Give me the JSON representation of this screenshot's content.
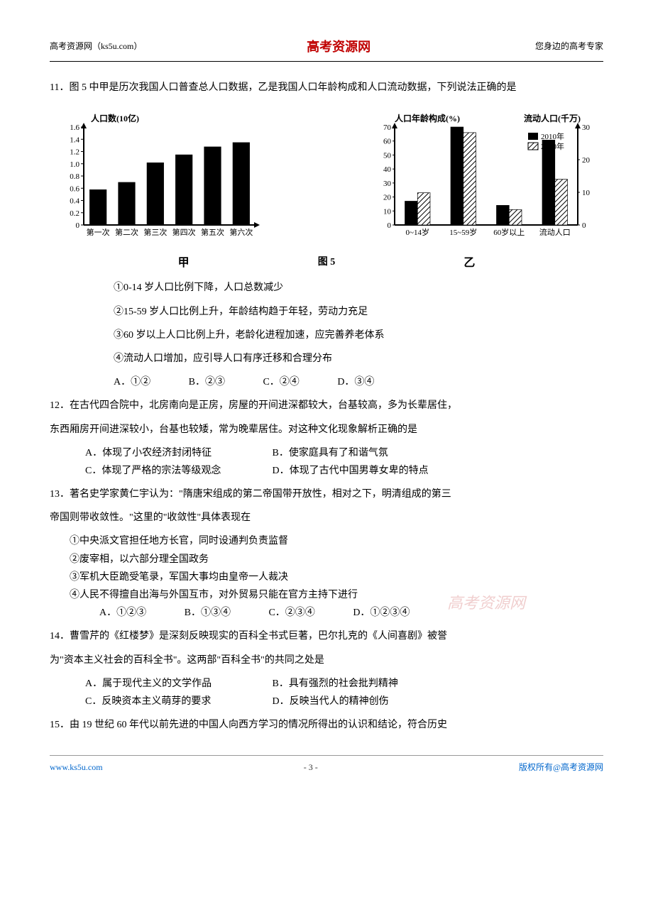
{
  "header": {
    "left": "高考资源网（ks5u.com）",
    "center": "高考资源网",
    "right": "您身边的高考专家"
  },
  "watermark": "高考资源网",
  "q11": {
    "stem": "11．图 5 中甲是历次我国人口普查总人口数据，乙是我国人口年龄构成和人口流动数据，下列说法正确的是",
    "opt1": "①0-14 岁人口比例下降，人口总数减少",
    "opt2": "②15-59 岁人口比例上升，年龄结构趋于年轻，劳动力充足",
    "opt3": "③60 岁以上人口比例上升，老龄化进程加速，应完善养老体系",
    "opt4": "④流动人口增加，应引导人口有序迁移和合理分布",
    "cA": "A．①②",
    "cB": "B．②③",
    "cC": "C．②④",
    "cD": "D．③④"
  },
  "chart1": {
    "type": "bar",
    "y_title": "人口数(10亿)",
    "categories": [
      "第一次",
      "第二次",
      "第三次",
      "第四次",
      "第五次",
      "第六次"
    ],
    "values": [
      0.58,
      0.7,
      1.02,
      1.15,
      1.28,
      1.35
    ],
    "ylim": [
      0,
      1.6
    ],
    "ytick_step": 0.2,
    "bar_color": "#000000",
    "axis_color": "#000000",
    "background_color": "#ffffff",
    "label_fontsize": 11,
    "caption": "甲",
    "fig_label": "图 5"
  },
  "chart2": {
    "type": "grouped-bar-dual-axis",
    "left_y_title": "人口年龄构成(%)",
    "right_y_title": "流动人口(千万)",
    "categories": [
      "0~14岁",
      "15~59岁",
      "60岁以上",
      "流动人口"
    ],
    "series": [
      {
        "name": "2010年",
        "values": [
          17,
          70,
          14,
          26
        ],
        "fill": "solid",
        "color": "#000000"
      },
      {
        "name": "2000年",
        "values": [
          23,
          66,
          11,
          14
        ],
        "fill": "hatch",
        "color": "#000000"
      }
    ],
    "left_ylim": [
      0,
      70
    ],
    "left_ytick_step": 10,
    "right_ylim": [
      0,
      30
    ],
    "right_ytick_step": 10,
    "axis_color": "#000000",
    "background_color": "#ffffff",
    "label_fontsize": 11,
    "legend": [
      "2010年",
      "2000年"
    ],
    "caption": "乙"
  },
  "q12": {
    "stem1": "12．在古代四合院中，北房南向是正房，房屋的开间进深都较大，台基较高，多为长辈居住，",
    "stem2": "东西厢房开间进深较小，台基也较矮，常为晚辈居住。对这种文化现象解析正确的是",
    "cA": "A．体现了小农经济封闭特征",
    "cB": "B．使家庭具有了和谐气氛",
    "cC": "C．体现了严格的宗法等级观念",
    "cD": "D．体现了古代中国男尊女卑的特点"
  },
  "q13": {
    "stem1": "13．著名史学家黄仁宇认为：\"隋唐宋组成的第二帝国带开放性，相对之下，明清组成的第三",
    "stem2": "帝国则带收敛性。\"这里的\"收敛性\"具体表现在",
    "opt1": "①中央派文官担任地方长官，同时设通判负责监督",
    "opt2": "②废宰相，以六部分理全国政务",
    "opt3": "③军机大臣跪受笔录，军国大事均由皇帝一人裁决",
    "opt4": "④人民不得擅自出海与外国互市，对外贸易只能在官方主持下进行",
    "cA": "A．①②③",
    "cB": "B．①③④",
    "cC": "C．②③④",
    "cD": "D．①②③④"
  },
  "q14": {
    "stem1": "14．曹雪芹的《红楼梦》是深刻反映现实的百科全书式巨著，巴尔扎克的《人间喜剧》被誉",
    "stem2": "为\"资本主义社会的百科全书\"。这两部\"百科全书\"的共同之处是",
    "cA": "A．属于现代主义的文学作品",
    "cB": "B．具有强烈的社会批判精神",
    "cC": "C．反映资本主义萌芽的要求",
    "cD": "D．反映当代人的精神创伤"
  },
  "q15": {
    "stem": "15．由 19 世纪 60 年代以前先进的中国人向西方学习的情况所得出的认识和结论，符合历史"
  },
  "footer": {
    "left": "www.ks5u.com",
    "center": "- 3 -",
    "right": "版权所有@高考资源网"
  }
}
